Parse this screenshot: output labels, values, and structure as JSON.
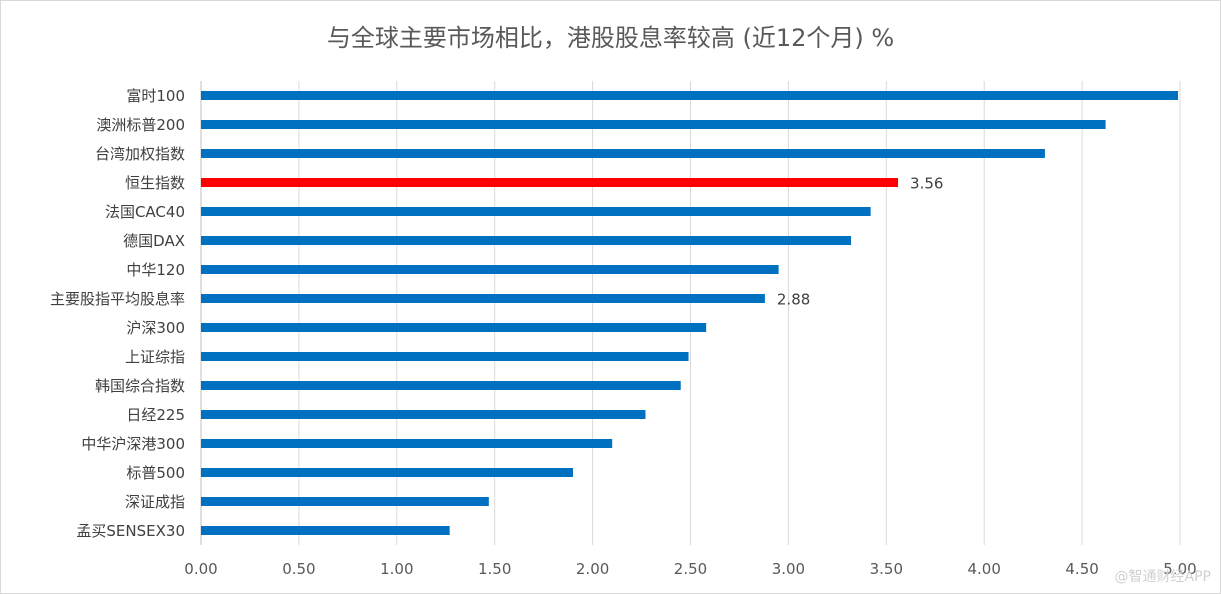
{
  "chart_data": {
    "type": "bar",
    "orientation": "horizontal",
    "title": "与全球主要市场相比，港股股息率较高 (近12个月) %",
    "categories": [
      "富时100",
      "澳洲标普200",
      "台湾加权指数",
      "恒生指数",
      "法国CAC40",
      "德国DAX",
      "中华120",
      "主要股指平均股息率",
      "沪深300",
      "上证综指",
      "韩国综合指数",
      "日经225",
      "中华沪深港300",
      "标普500",
      "深证成指",
      "孟买SENSEX30"
    ],
    "values": [
      4.99,
      4.62,
      4.31,
      3.56,
      3.42,
      3.32,
      2.95,
      2.88,
      2.58,
      2.49,
      2.45,
      2.27,
      2.1,
      1.9,
      1.47,
      1.27
    ],
    "data_labels": {
      "3": "3.56",
      "7": "2.88"
    },
    "highlight_index": 3,
    "xlim": [
      0,
      5
    ],
    "xticks": [
      "0.00",
      "0.50",
      "1.00",
      "1.50",
      "2.00",
      "2.50",
      "3.00",
      "3.50",
      "4.00",
      "4.50",
      "5.00"
    ],
    "grid": "vertical",
    "colors": {
      "bar": "#0070c0",
      "highlight": "#ff0000",
      "grid": "#d9d9d9",
      "axis": "#bfbfbf"
    }
  },
  "watermark": "@智通财经APP"
}
